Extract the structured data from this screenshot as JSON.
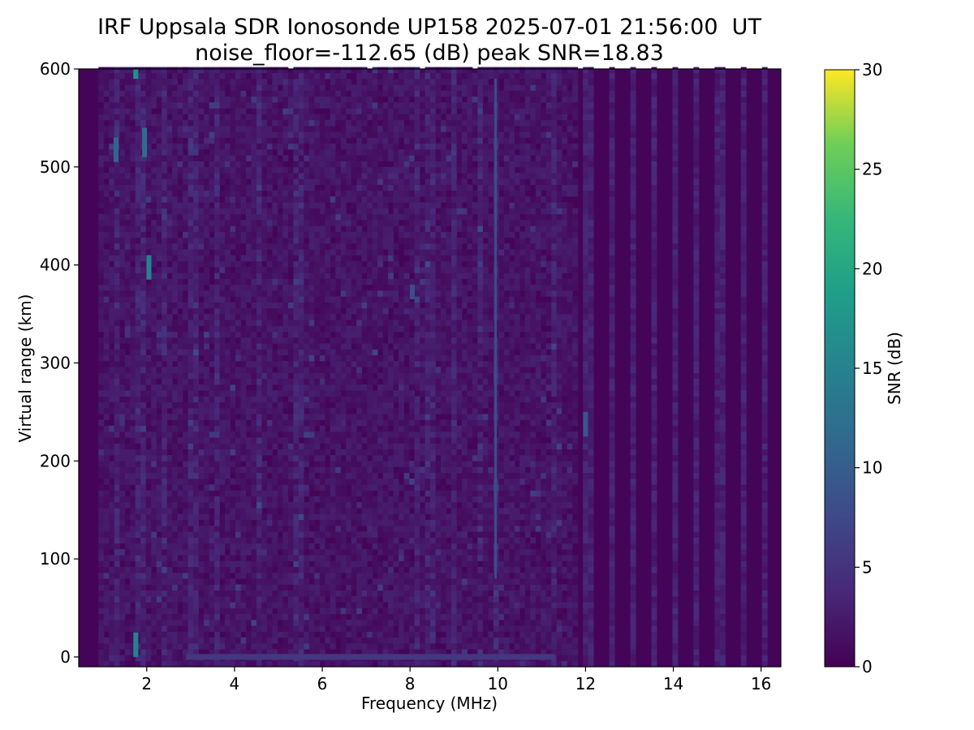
{
  "chart_data": {
    "type": "heatmap",
    "title": "IRF Uppsala SDR Ionosonde UP158 2025-07-01 21:56:00  UT",
    "subtitle": "noise_floor=-112.65 (dB) peak SNR=18.83",
    "xlabel": "Frequency (MHz)",
    "ylabel": "Virtual range (km)",
    "colorbar_label": "SNR (dB)",
    "colormap": "viridis",
    "xlim": [
      0.45,
      16.45
    ],
    "ylim": [
      -10,
      600
    ],
    "clim": [
      0,
      30
    ],
    "x_ticks": [
      2,
      4,
      6,
      8,
      10,
      12,
      14,
      16
    ],
    "y_ticks": [
      0,
      100,
      200,
      300,
      400,
      500,
      600
    ],
    "colorbar_ticks": [
      0,
      5,
      10,
      15,
      20,
      25,
      30
    ],
    "background_snr": 2,
    "high_freq_background_snr": 0.5,
    "vertical_streaks_mhz": [
      1.3,
      1.8,
      2.3,
      3.0,
      3.5,
      4.5,
      5.4,
      8.1,
      8.4,
      8.9,
      9.5,
      9.9,
      11.2,
      12.0,
      12.5,
      13.0,
      13.5,
      14.0,
      14.5,
      15.0,
      15.5,
      16.0
    ],
    "highlights": [
      {
        "freq_mhz": 1.75,
        "range_km": [
          590,
          600
        ],
        "snr": 17
      },
      {
        "freq_mhz": 1.75,
        "range_km": [
          0,
          25
        ],
        "snr": 15
      },
      {
        "freq_mhz": 1.3,
        "range_km": [
          505,
          530
        ],
        "snr": 11
      },
      {
        "freq_mhz": 1.95,
        "range_km": [
          510,
          540
        ],
        "snr": 12
      },
      {
        "freq_mhz": 2.05,
        "range_km": [
          385,
          410
        ],
        "snr": 15
      },
      {
        "freq_mhz": 12.0,
        "range_km": [
          225,
          250
        ],
        "snr": 9
      },
      {
        "freq_mhz": 9.95,
        "range_km": [
          80,
          590
        ],
        "snr": 8
      },
      {
        "freq_mhz": 8.05,
        "range_km": [
          365,
          380
        ],
        "snr": 8
      }
    ],
    "ground_echo": {
      "range_km": 0,
      "freq_mhz": [
        2.9,
        11.3
      ],
      "snr": 10
    }
  }
}
